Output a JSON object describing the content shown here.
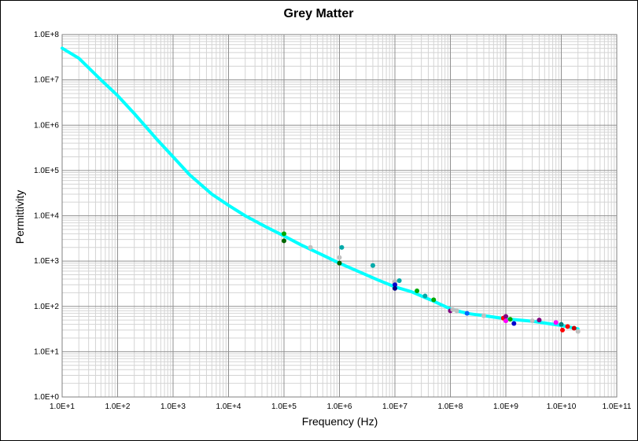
{
  "chart_data": {
    "type": "scatter",
    "title": "Grey Matter",
    "xlabel": "Frequency (Hz)",
    "ylabel": "Permittivity",
    "xscale": "log",
    "yscale": "log",
    "xlim": [
      10,
      100000000000
    ],
    "ylim": [
      1,
      100000000
    ],
    "grid": true,
    "x_ticks": [
      "1.0E+1",
      "1.0E+2",
      "1.0E+3",
      "1.0E+4",
      "1.0E+5",
      "1.0E+6",
      "1.0E+7",
      "1.0E+8",
      "1.0E+9",
      "1.0E+10",
      "1.0E+11"
    ],
    "y_ticks": [
      "1.0E+0",
      "1.0E+1",
      "1.0E+2",
      "1.0E+3",
      "1.0E+4",
      "1.0E+5",
      "1.0E+6",
      "1.0E+7",
      "1.0E+8"
    ],
    "series": [
      {
        "type": "line",
        "color": "#00ffff",
        "x": [
          10,
          20,
          50,
          100,
          200,
          500,
          1000,
          2000,
          5000,
          10000,
          20000,
          50000,
          100000,
          200000,
          500000,
          1000000,
          2000000,
          5000000,
          10000000,
          20000000,
          30000000,
          50000000,
          100000000,
          200000000,
          500000000,
          1000000000,
          3000000000,
          10000000000,
          20000000000
        ],
        "y": [
          50000000,
          30000000,
          10000000,
          4500000,
          1800000,
          500000,
          200000,
          80000,
          30000,
          17000,
          10000,
          5500,
          3600,
          2300,
          1350,
          900,
          620,
          380,
          270,
          210,
          170,
          130,
          88,
          70,
          60,
          53,
          47,
          38,
          32
        ]
      },
      {
        "type": "scatter",
        "points": [
          {
            "x": 100000,
            "y": 4000,
            "color": "#00aa00"
          },
          {
            "x": 100000,
            "y": 2800,
            "color": "#006600"
          },
          {
            "x": 300000,
            "y": 2000,
            "color": "#c0c0c0"
          },
          {
            "x": 1000000,
            "y": 1200,
            "color": "#c0c0c0"
          },
          {
            "x": 1000000,
            "y": 900,
            "color": "#006600"
          },
          {
            "x": 1100000,
            "y": 2000,
            "color": "#00aaaa"
          },
          {
            "x": 4000000,
            "y": 800,
            "color": "#00aaaa"
          },
          {
            "x": 10000000,
            "y": 350,
            "color": "#c0c0c0"
          },
          {
            "x": 10000000,
            "y": 300,
            "color": "#0000cc"
          },
          {
            "x": 10000000,
            "y": 250,
            "color": "#000080"
          },
          {
            "x": 12000000,
            "y": 370,
            "color": "#00aaaa"
          },
          {
            "x": 25000000,
            "y": 220,
            "color": "#00aa00"
          },
          {
            "x": 35000000,
            "y": 170,
            "color": "#00aaaa"
          },
          {
            "x": 50000000,
            "y": 140,
            "color": "#00aa00"
          },
          {
            "x": 100000000,
            "y": 80,
            "color": "#800080"
          },
          {
            "x": 110000000,
            "y": 85,
            "color": "#c0c0c0"
          },
          {
            "x": 130000000,
            "y": 80,
            "color": "#c0c0c0"
          },
          {
            "x": 200000000,
            "y": 70,
            "color": "#0066ff"
          },
          {
            "x": 400000000,
            "y": 62,
            "color": "#c0c0c0"
          },
          {
            "x": 900000000,
            "y": 55,
            "color": "#ff0000"
          },
          {
            "x": 1000000000,
            "y": 60,
            "color": "#800080"
          },
          {
            "x": 1000000000,
            "y": 48,
            "color": "#ff00ff"
          },
          {
            "x": 1200000000,
            "y": 52,
            "color": "#00aa00"
          },
          {
            "x": 1400000000,
            "y": 42,
            "color": "#0000cc"
          },
          {
            "x": 3000000000,
            "y": 48,
            "color": "#c0c0c0"
          },
          {
            "x": 4000000000,
            "y": 50,
            "color": "#800080"
          },
          {
            "x": 8000000000,
            "y": 44,
            "color": "#ff00ff"
          },
          {
            "x": 10000000000,
            "y": 40,
            "color": "#008080"
          },
          {
            "x": 10500000000,
            "y": 30,
            "color": "#ff0000"
          },
          {
            "x": 13000000000,
            "y": 36,
            "color": "#ff0000"
          },
          {
            "x": 17000000000,
            "y": 33,
            "color": "#cc0000"
          },
          {
            "x": 20000000000,
            "y": 28,
            "color": "#c0c0c0"
          }
        ]
      }
    ]
  }
}
